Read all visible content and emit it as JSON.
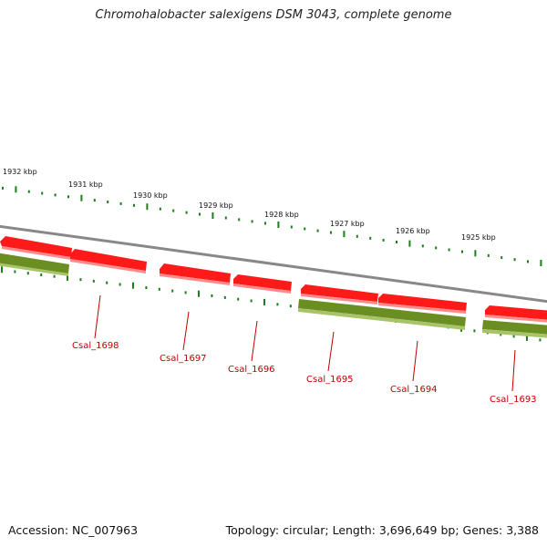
{
  "title": "Chromohalobacter salexigens DSM 3043, complete genome",
  "footer": {
    "accession": "Accession: NC_007963",
    "summary": "Topology: circular; Length: 3,696,649 bp; Genes: 3,388"
  },
  "colors": {
    "forward_gene": "#ff0000",
    "reverse_gene": "#6b8e23",
    "backbone": "#888888",
    "tick": "#1a7f1a",
    "label": "#c00000"
  },
  "scale_ticks": [
    {
      "kbp": 1932,
      "label": "1932 kbp"
    },
    {
      "kbp": 1931,
      "label": "1931 kbp"
    },
    {
      "kbp": 1930,
      "label": "1930 kbp"
    },
    {
      "kbp": 1929,
      "label": "1929 kbp"
    },
    {
      "kbp": 1928,
      "label": "1928 kbp"
    },
    {
      "kbp": 1927,
      "label": "1927 kbp"
    },
    {
      "kbp": 1926,
      "label": "1926 kbp"
    },
    {
      "kbp": 1925,
      "label": "1925 kbp"
    }
  ],
  "gene_labels": [
    {
      "name": "Csal_1698"
    },
    {
      "name": "Csal_1697"
    },
    {
      "name": "Csal_1696"
    },
    {
      "name": "Csal_1695"
    },
    {
      "name": "Csal_1694"
    },
    {
      "name": "Csal_1693"
    }
  ]
}
